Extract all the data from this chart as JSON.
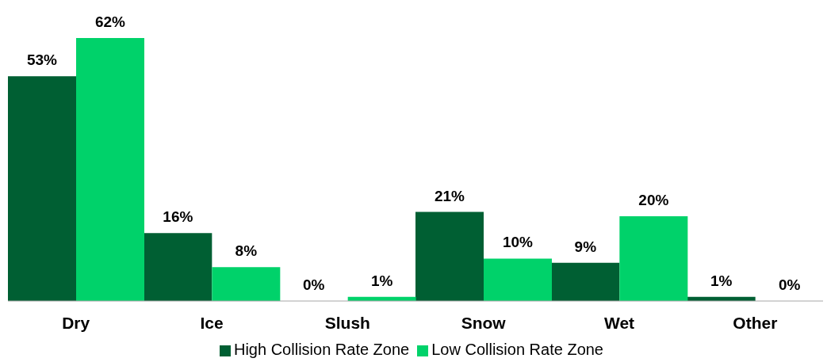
{
  "chart_data": {
    "type": "bar",
    "categories": [
      "Dry",
      "Ice",
      "Slush",
      "Snow",
      "Wet",
      "Other"
    ],
    "series": [
      {
        "name": "High Collision Rate Zone",
        "color": "#005f33",
        "values": [
          53,
          16,
          0,
          21,
          9,
          1
        ],
        "value_labels": [
          "53%",
          "16%",
          "0%",
          "21%",
          "9%",
          "1%"
        ]
      },
      {
        "name": "Low Collision Rate Zone",
        "color": "#00d26a",
        "values": [
          62,
          8,
          1,
          10,
          20,
          0
        ],
        "value_labels": [
          "62%",
          "8%",
          "1%",
          "10%",
          "20%",
          "0%"
        ]
      }
    ],
    "legend": "bottom",
    "grid": false
  }
}
